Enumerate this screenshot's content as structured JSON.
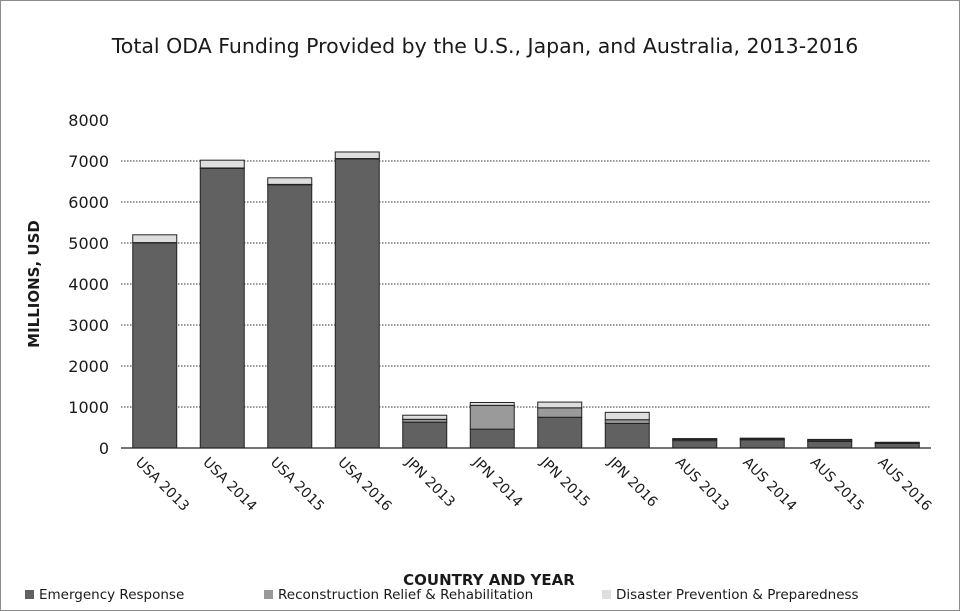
{
  "chart_data": {
    "type": "bar",
    "stacked": true,
    "title": "Total ODA Funding Provided by the U.S., Japan, and Australia, 2013-2016",
    "xlabel": "COUNTRY AND YEAR",
    "ylabel": "MILLIONS, USD",
    "ylim": [
      0,
      8000
    ],
    "yticks": [
      "0",
      "1000",
      "2000",
      "3000",
      "4000",
      "5000",
      "6000",
      "7000",
      "8000"
    ],
    "grid": true,
    "legend_position": "bottom",
    "categories": [
      "USA 2013",
      "USA 2014",
      "USA 2015",
      "USA 2016",
      "JPN 2013",
      "JPN 2014",
      "JPN 2015",
      "JPN 2016",
      "AUS 2013",
      "AUS 2014",
      "AUS 2015",
      "AUS 2016"
    ],
    "series": [
      {
        "name": "Emergency Response",
        "color": "#616161",
        "values": [
          5000,
          6820,
          6420,
          7050,
          630,
          460,
          750,
          600,
          180,
          200,
          160,
          110
        ]
      },
      {
        "name": "Reconstruction Relief & Rehabilitation",
        "color": "#9a9a9a",
        "values": [
          10,
          10,
          10,
          10,
          70,
          580,
          230,
          90,
          30,
          20,
          30,
          10
        ]
      },
      {
        "name": "Disaster Prevention & Preparedness",
        "color": "#dedede",
        "values": [
          190,
          190,
          160,
          160,
          100,
          70,
          140,
          180,
          20,
          20,
          20,
          20
        ]
      }
    ]
  }
}
